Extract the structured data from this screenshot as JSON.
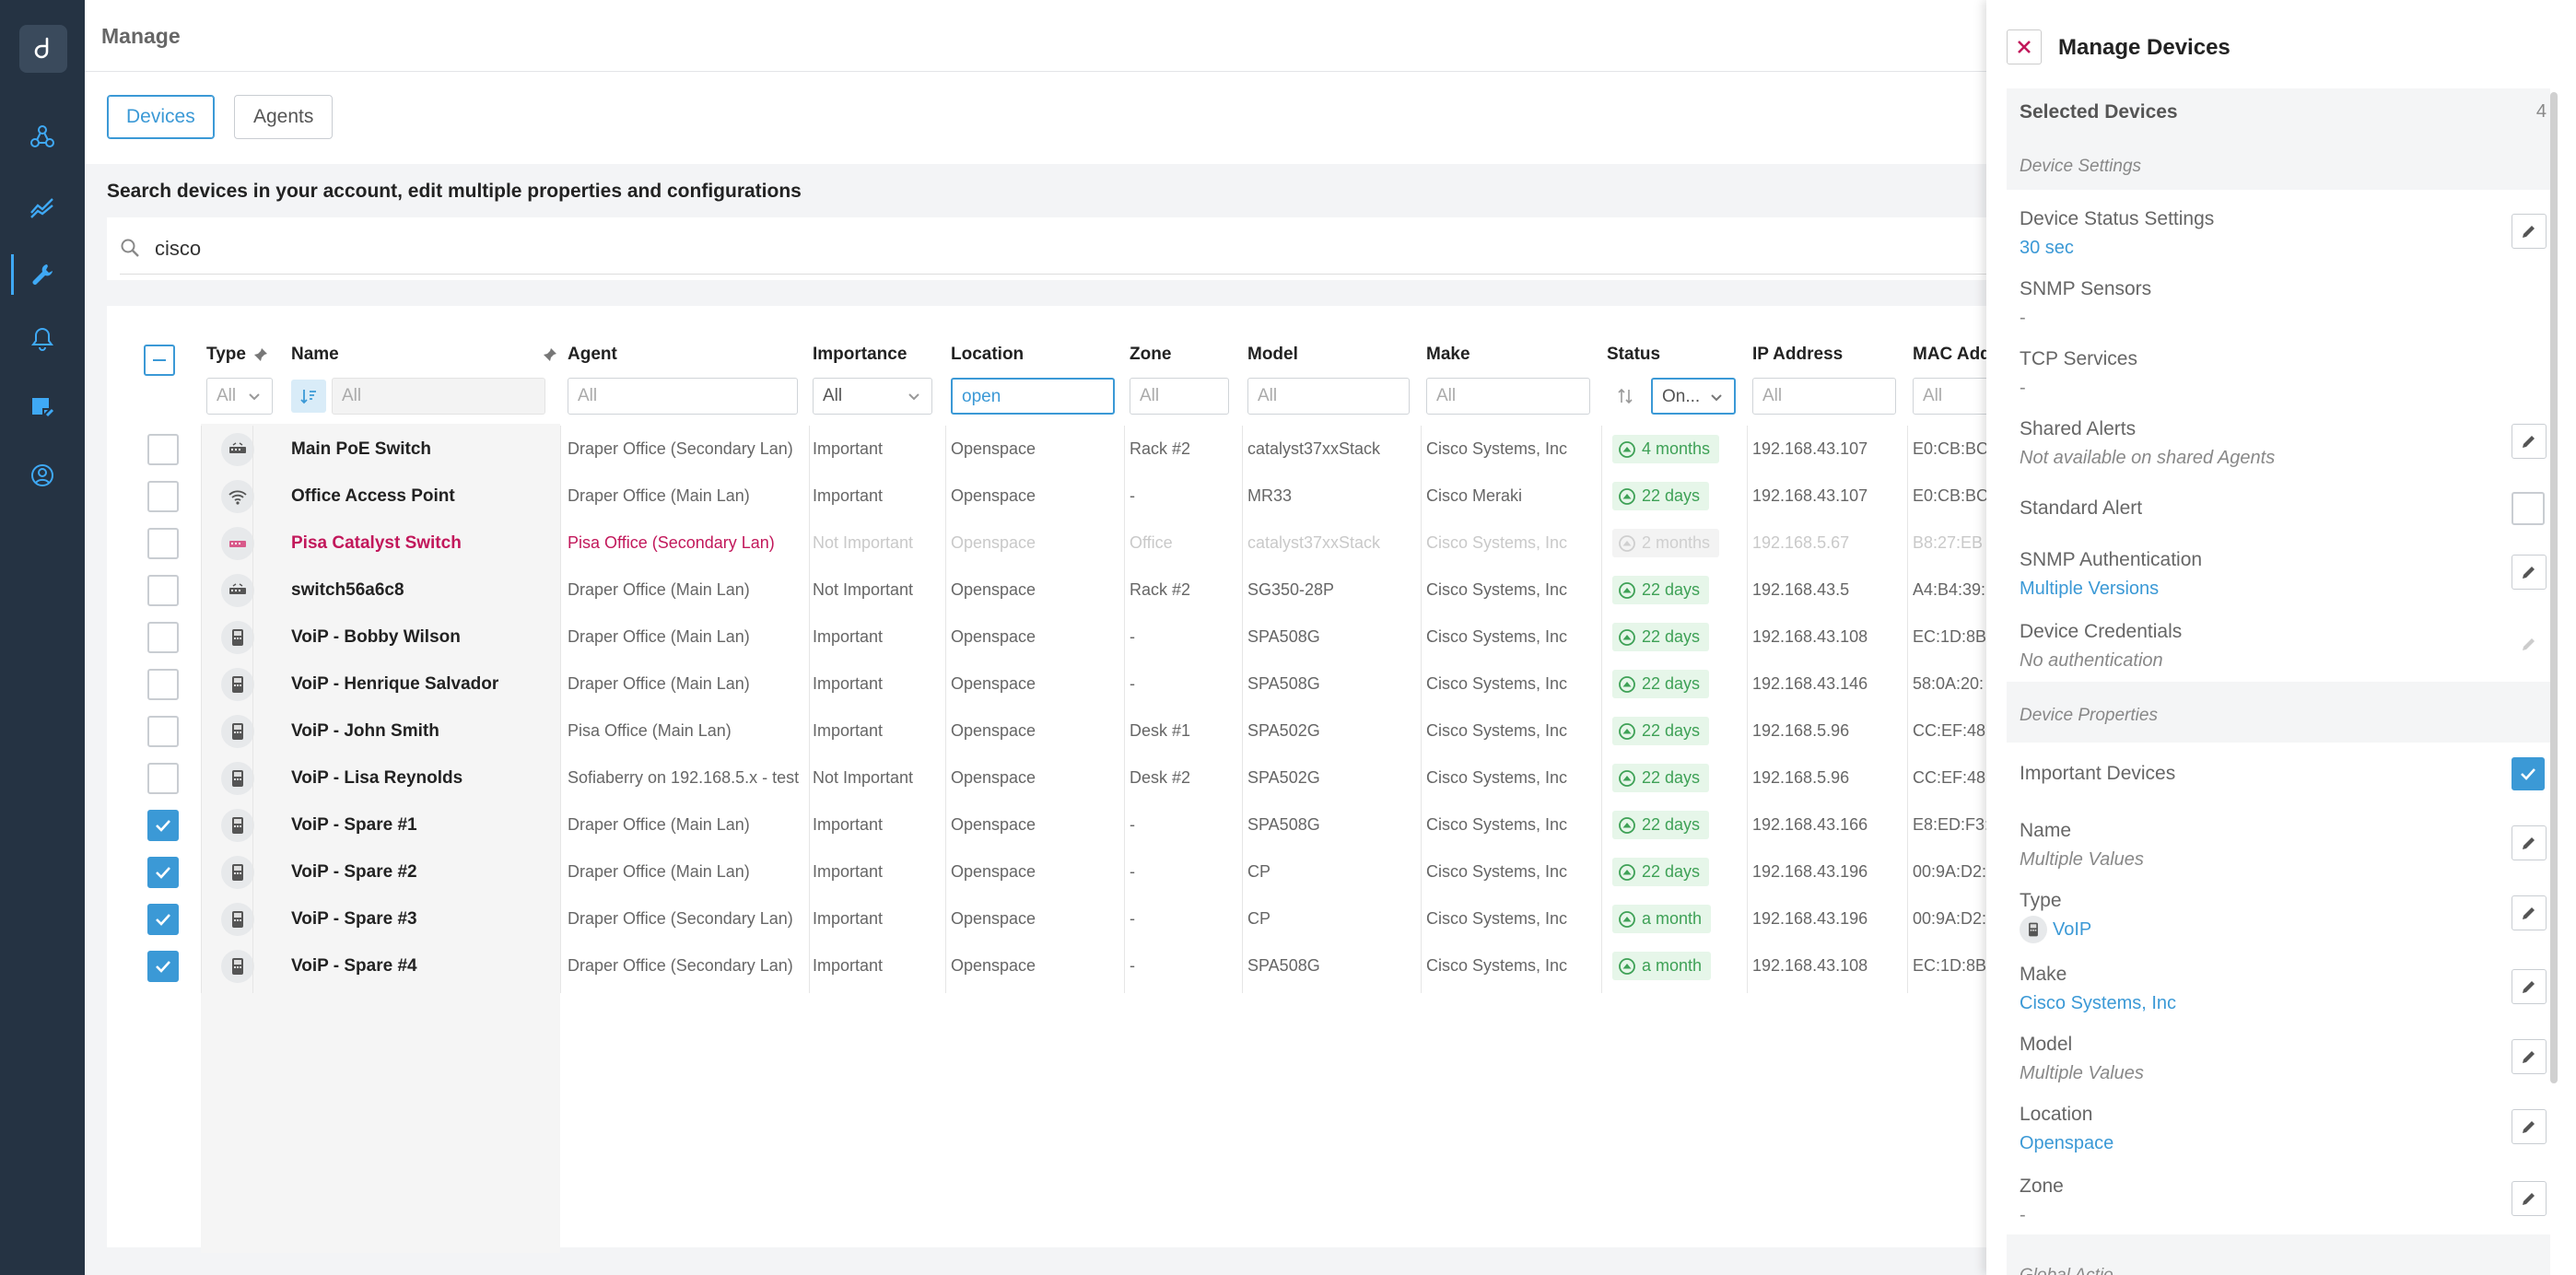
{
  "page": {
    "title": "Manage"
  },
  "tabs": [
    {
      "label": "Devices"
    },
    {
      "label": "Agents"
    }
  ],
  "subtitle": "Search devices in your account, edit multiple properties and configurations",
  "search": {
    "value": "cisco"
  },
  "columns": {
    "type": "Type",
    "name": "Name",
    "agent": "Agent",
    "importance": "Importance",
    "location": "Location",
    "zone": "Zone",
    "model": "Model",
    "make": "Make",
    "status": "Status",
    "ip": "IP Address",
    "mac": "MAC Add"
  },
  "filters": {
    "type": "All",
    "name": "All",
    "agent": "All",
    "importance": "All",
    "location": "open",
    "zone": "All",
    "model": "All",
    "make": "All",
    "status": "On...",
    "ip": "All",
    "mac": "All"
  },
  "rows": [
    {
      "checked": false,
      "icon": "switch-icon",
      "name": "Main PoE Switch",
      "agent": "Draper Office (Secondary Lan)",
      "importance": "Important",
      "location": "Openspace",
      "zone": "Rack #2",
      "model": "catalyst37xxStack",
      "make": "Cisco Systems, Inc",
      "status": "4 months",
      "ip": "192.168.43.107",
      "mac": "E0:CB:BC"
    },
    {
      "checked": false,
      "icon": "wifi-icon",
      "name": "Office Access Point",
      "agent": "Draper Office (Main Lan)",
      "importance": "Important",
      "location": "Openspace",
      "zone": "-",
      "model": "MR33",
      "make": "Cisco Meraki",
      "status": "22 days",
      "ip": "192.168.43.107",
      "mac": "E0:CB:BC"
    },
    {
      "checked": false,
      "icon": "switch-icon",
      "name": "Pisa Catalyst Switch",
      "agent": "Pisa Office (Secondary Lan)",
      "importance": "Not Important",
      "location": "Openspace",
      "zone": "Office",
      "model": "catalyst37xxStack",
      "make": "Cisco Systems, Inc",
      "status": "2 months",
      "ip": "192.168.5.67",
      "mac": "B8:27:EB",
      "dim": true
    },
    {
      "checked": false,
      "icon": "switch-icon",
      "name": "switch56a6c8",
      "agent": "Draper Office (Main Lan)",
      "importance": "Not Important",
      "location": "Openspace",
      "zone": "Rack #2",
      "model": "SG350-28P",
      "make": "Cisco Systems, Inc",
      "status": "22 days",
      "ip": "192.168.43.5",
      "mac": "A4:B4:39:"
    },
    {
      "checked": false,
      "icon": "voip-phone-icon",
      "name": "VoiP - Bobby Wilson",
      "agent": "Draper Office (Main Lan)",
      "importance": "Important",
      "location": "Openspace",
      "zone": "-",
      "model": "SPA508G",
      "make": "Cisco Systems, Inc",
      "status": "22 days",
      "ip": "192.168.43.108",
      "mac": "EC:1D:8B"
    },
    {
      "checked": false,
      "icon": "voip-phone-icon",
      "name": "VoiP - Henrique Salvador",
      "agent": "Draper Office (Main Lan)",
      "importance": "Important",
      "location": "Openspace",
      "zone": "-",
      "model": "SPA508G",
      "make": "Cisco Systems, Inc",
      "status": "22 days",
      "ip": "192.168.43.146",
      "mac": "58:0A:20:"
    },
    {
      "checked": false,
      "icon": "voip-phone-icon",
      "name": "VoiP - John Smith",
      "agent": "Pisa Office (Main Lan)",
      "importance": "Important",
      "location": "Openspace",
      "zone": "Desk #1",
      "model": "SPA502G",
      "make": "Cisco Systems, Inc",
      "status": "22 days",
      "ip": "192.168.5.96",
      "mac": "CC:EF:48"
    },
    {
      "checked": false,
      "icon": "voip-phone-icon",
      "name": "VoiP - Lisa Reynolds",
      "agent": "Sofiaberry on 192.168.5.x - test",
      "importance": "Not Important",
      "location": "Openspace",
      "zone": "Desk #2",
      "model": "SPA502G",
      "make": "Cisco Systems, Inc",
      "status": "22 days",
      "ip": "192.168.5.96",
      "mac": "CC:EF:48"
    },
    {
      "checked": true,
      "icon": "voip-phone-icon",
      "name": "VoiP - Spare #1",
      "agent": "Draper Office (Main Lan)",
      "importance": "Important",
      "location": "Openspace",
      "zone": "-",
      "model": "SPA508G",
      "make": "Cisco Systems, Inc",
      "status": "22 days",
      "ip": "192.168.43.166",
      "mac": "E8:ED:F3:"
    },
    {
      "checked": true,
      "icon": "voip-phone-icon",
      "name": "VoiP - Spare #2",
      "agent": "Draper Office (Main Lan)",
      "importance": "Important",
      "location": "Openspace",
      "zone": "-",
      "model": "CP",
      "make": "Cisco Systems, Inc",
      "status": "22 days",
      "ip": "192.168.43.196",
      "mac": "00:9A:D2:"
    },
    {
      "checked": true,
      "icon": "voip-phone-icon",
      "name": "VoiP - Spare #3",
      "agent": "Draper Office (Secondary Lan)",
      "importance": "Important",
      "location": "Openspace",
      "zone": "-",
      "model": "CP",
      "make": "Cisco Systems, Inc",
      "status": "a month",
      "ip": "192.168.43.196",
      "mac": "00:9A:D2:"
    },
    {
      "checked": true,
      "icon": "voip-phone-icon",
      "name": "VoiP - Spare #4",
      "agent": "Draper Office (Secondary Lan)",
      "importance": "Important",
      "location": "Openspace",
      "zone": "-",
      "model": "SPA508G",
      "make": "Cisco Systems, Inc",
      "status": "a month",
      "ip": "192.168.43.108",
      "mac": "EC:1D:8B"
    }
  ],
  "drawer": {
    "title": "Manage Devices",
    "selected_label": "Selected Devices",
    "selected_count": "4",
    "settings_section": "Device Settings",
    "properties_section": "Device Properties",
    "footer_partial": "Global Actio",
    "settings": [
      {
        "label": "Device Status Settings",
        "value": "30 sec",
        "style": "link",
        "control": "edit"
      },
      {
        "label": "SNMP Sensors",
        "value": "-",
        "style": "plain",
        "control": "none"
      },
      {
        "label": "TCP Services",
        "value": "-",
        "style": "plain",
        "control": "none"
      },
      {
        "label": "Shared Alerts",
        "value": "Not available on shared Agents",
        "style": "italic",
        "control": "edit"
      },
      {
        "label": "Standard Alert",
        "value": "",
        "style": "plain",
        "control": "checkbox-off"
      },
      {
        "label": "SNMP Authentication",
        "value": "Multiple Versions",
        "style": "link",
        "control": "edit"
      },
      {
        "label": "Device Credentials",
        "value": "No authentication",
        "style": "italic",
        "control": "edit-disabled"
      }
    ],
    "properties": [
      {
        "label": "Important Devices",
        "value": "",
        "style": "plain",
        "control": "checkbox-on"
      },
      {
        "label": "Name",
        "value": "Multiple Values",
        "style": "italic",
        "control": "edit"
      },
      {
        "label": "Type",
        "value": "VoIP",
        "style": "link",
        "control": "edit"
      },
      {
        "label": "Make",
        "value": "Cisco Systems, Inc",
        "style": "link",
        "control": "edit"
      },
      {
        "label": "Model",
        "value": "Multiple Values",
        "style": "italic",
        "control": "edit"
      },
      {
        "label": "Location",
        "value": "Openspace",
        "style": "link",
        "control": "edit"
      },
      {
        "label": "Zone",
        "value": "-",
        "style": "plain",
        "control": "edit"
      }
    ]
  },
  "colors": {
    "accent": "#3b99d6",
    "nav": "#253343",
    "status_green": "#3ea156",
    "offline_red": "#c2185b"
  }
}
